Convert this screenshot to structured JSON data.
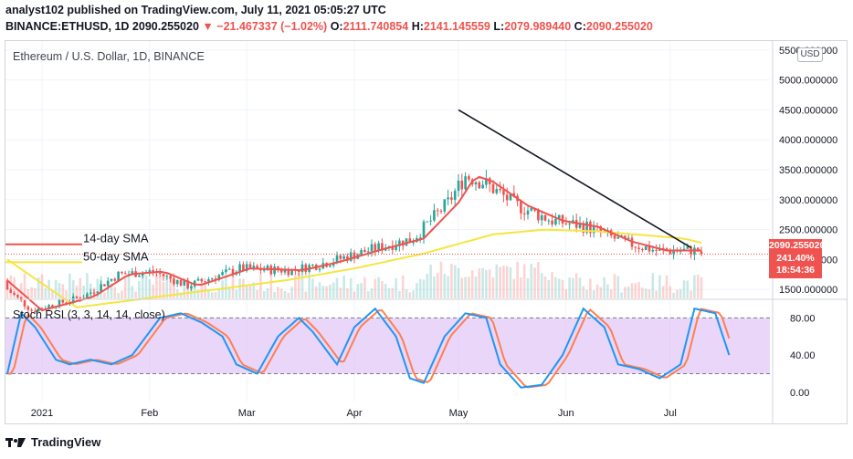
{
  "header": {
    "publisher": "analyst102 published on TradingView.com, July 11, 2021 05:05:27 UTC",
    "symbol": "BINANCE:ETHUSD, 1D",
    "last": "2090.255020",
    "change_arrow": "▼",
    "change": "−21.467337 (−1.02%)",
    "o_label": "O:",
    "o_value": "2111.740854",
    "h_label": "H:",
    "h_value": "2141.145559",
    "l_label": "L:",
    "l_value": "2079.989440",
    "c_label": "C:",
    "c_value": "2090.255020"
  },
  "main_pane": {
    "title": "Ethereum / U.S. Dollar, 1D, BINANCE",
    "currency_badge": "USD",
    "price_tag": {
      "price": "2090.255020",
      "change": "241.40%",
      "countdown": "18:54:36"
    },
    "annotations": {
      "sma14": "14-day SMA",
      "sma50": "50-day SMA"
    }
  },
  "osc_pane": {
    "title": "Stoch RSI (3, 3, 14, 14, close)"
  },
  "footer": {
    "brand": "TradingView"
  },
  "colors": {
    "up": "#26a69a",
    "down": "#ef5350",
    "sma14": "#ef5350",
    "sma50": "#f5e542",
    "rsi_k": "#2196f3",
    "rsi_d": "#ff7f50",
    "rsi_band": "#e1c8f7",
    "trendline": "#131722"
  },
  "chart_data": [
    {
      "type": "candlestick",
      "title": "Ethereum / U.S. Dollar, 1D, BINANCE",
      "x_ticks": [
        "2021",
        "Feb",
        "Mar",
        "Apr",
        "May",
        "Jun",
        "Jul"
      ],
      "y_ticks": [
        "1500.000000",
        "2000.000000",
        "2500.000000",
        "3000.000000",
        "3500.000000",
        "4000.000000",
        "4500.000000",
        "5000.000000",
        "5500.000000"
      ],
      "ylim": [
        1350,
        5650
      ],
      "series": [
        {
          "name": "14-day SMA",
          "values_by_day": [
            [
              0,
              1650
            ],
            [
              10,
              1150
            ],
            [
              25,
              1380
            ],
            [
              35,
              1750
            ],
            [
              45,
              1800
            ],
            [
              55,
              1560
            ],
            [
              70,
              1850
            ],
            [
              85,
              1820
            ],
            [
              95,
              1950
            ],
            [
              110,
              2200
            ],
            [
              120,
              2350
            ],
            [
              130,
              2950
            ],
            [
              135,
              3400
            ],
            [
              140,
              3300
            ],
            [
              150,
              2900
            ],
            [
              160,
              2650
            ],
            [
              170,
              2550
            ],
            [
              180,
              2300
            ],
            [
              190,
              2150
            ],
            [
              200,
              2150
            ]
          ]
        },
        {
          "name": "50-day SMA",
          "values_by_day": [
            [
              0,
              2000
            ],
            [
              20,
              1200
            ],
            [
              40,
              1350
            ],
            [
              60,
              1500
            ],
            [
              80,
              1650
            ],
            [
              100,
              1850
            ],
            [
              120,
              2100
            ],
            [
              140,
              2420
            ],
            [
              155,
              2500
            ],
            [
              170,
              2470
            ],
            [
              185,
              2400
            ],
            [
              195,
              2350
            ],
            [
              200,
              2280
            ]
          ]
        }
      ],
      "trendline": [
        {
          "day": 130,
          "price": 4500
        },
        {
          "day": 197,
          "price": 2200
        }
      ],
      "last_price_line": 2090.25502
    },
    {
      "type": "line",
      "title": "Stoch RSI (3, 3, 14, 14, close)",
      "y_ticks": [
        "0.00",
        "40.00",
        "80.00"
      ],
      "ylim": [
        -10,
        100
      ],
      "bands": [
        20,
        80
      ],
      "series": [
        {
          "values_by_day": [
            [
              0,
              20
            ],
            [
              4,
              85
            ],
            [
              8,
              70
            ],
            [
              14,
              35
            ],
            [
              18,
              30
            ],
            [
              24,
              35
            ],
            [
              30,
              30
            ],
            [
              36,
              40
            ],
            [
              44,
              80
            ],
            [
              50,
              85
            ],
            [
              56,
              75
            ],
            [
              62,
              60
            ],
            [
              66,
              30
            ],
            [
              72,
              20
            ],
            [
              78,
              60
            ],
            [
              84,
              80
            ],
            [
              88,
              65
            ],
            [
              95,
              30
            ],
            [
              100,
              70
            ],
            [
              106,
              90
            ],
            [
              112,
              60
            ],
            [
              116,
              15
            ],
            [
              120,
              10
            ],
            [
              126,
              60
            ],
            [
              132,
              85
            ],
            [
              138,
              80
            ],
            [
              142,
              30
            ],
            [
              148,
              5
            ],
            [
              154,
              8
            ],
            [
              160,
              40
            ],
            [
              166,
              90
            ],
            [
              172,
              70
            ],
            [
              176,
              30
            ],
            [
              182,
              25
            ],
            [
              188,
              15
            ],
            [
              194,
              30
            ],
            [
              198,
              90
            ],
            [
              204,
              85
            ],
            [
              208,
              40
            ]
          ]
        }
      ]
    }
  ]
}
